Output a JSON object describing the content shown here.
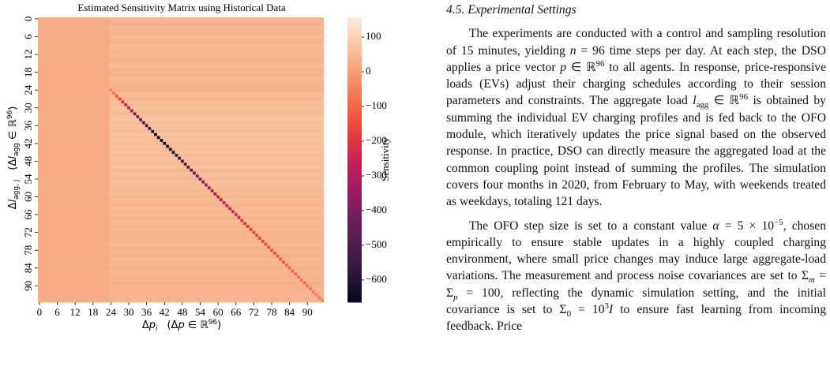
{
  "chart_data": {
    "type": "heatmap",
    "title": "Estimated Sensitivity Matrix using Historical Data",
    "xlabel": [
      "Δ",
      "p",
      "i",
      "(Δ",
      "p",
      " ∈ ℝ",
      "96",
      ")"
    ],
    "ylabel": [
      "Δ",
      "l",
      "agg, j",
      "(Δ",
      "l",
      "agg",
      " ∈ ℝ",
      "96",
      ")"
    ],
    "colorbar_label": "Sensitivity",
    "xlim": [
      0,
      96
    ],
    "ylim": [
      0,
      96
    ],
    "xticks": [
      0,
      6,
      12,
      18,
      24,
      30,
      36,
      42,
      48,
      54,
      60,
      66,
      72,
      78,
      84,
      90
    ],
    "yticks": [
      0,
      6,
      12,
      18,
      24,
      30,
      36,
      42,
      48,
      54,
      60,
      66,
      72,
      78,
      84,
      90
    ],
    "clim": [
      -664,
      157
    ],
    "cticks": [
      100,
      0,
      {
        "value": -100,
        "label": "−100"
      },
      {
        "value": -200,
        "label": "−200"
      },
      {
        "value": -300,
        "label": "−300"
      },
      {
        "value": -400,
        "label": "−400"
      },
      {
        "value": -500,
        "label": "−500"
      },
      {
        "value": -600,
        "label": "−600"
      }
    ],
    "colormap": "rocket",
    "left_values": [
      32,
      32,
      32,
      32,
      32,
      32,
      32,
      32,
      32,
      32,
      32,
      32,
      32,
      32,
      32,
      32,
      32,
      32,
      32,
      32,
      32,
      32,
      32,
      32,
      32,
      32,
      32,
      32,
      32,
      32,
      32,
      32,
      32,
      32,
      32,
      32,
      32,
      32,
      32,
      32,
      32,
      32,
      32,
      32,
      32,
      32,
      32,
      32,
      32,
      32,
      32,
      32,
      32,
      32,
      32,
      32,
      32,
      32,
      32,
      32,
      32,
      32,
      32,
      32,
      32,
      32,
      32,
      32,
      32,
      32,
      32,
      32,
      32,
      32,
      32,
      32,
      32,
      32,
      32,
      32,
      32,
      32,
      32,
      32,
      32,
      32,
      32,
      32,
      32,
      32,
      32,
      32,
      32,
      32,
      32,
      32
    ],
    "right_values": [
      45,
      50,
      38,
      55,
      48,
      42,
      58,
      50,
      40,
      60,
      52,
      44,
      56,
      48,
      38,
      54,
      60,
      46,
      50,
      42,
      58,
      52,
      44,
      48,
      40,
      55,
      62,
      50,
      66,
      58,
      72,
      64,
      55,
      70,
      78,
      60,
      74,
      68,
      58,
      76,
      66,
      72,
      60,
      70,
      64,
      74,
      56,
      68,
      62,
      58,
      70,
      52,
      64,
      60,
      48,
      66,
      56,
      62,
      50,
      60,
      46,
      58,
      52,
      44,
      56,
      48,
      60,
      42,
      54,
      50,
      46,
      58,
      40,
      52,
      48,
      44,
      56,
      42,
      50,
      46,
      38,
      54,
      44,
      48,
      40,
      52,
      46,
      42,
      50,
      38,
      48,
      44,
      40,
      50,
      42,
      46
    ],
    "diagonal_values": [
      null,
      null,
      null,
      null,
      null,
      null,
      null,
      null,
      null,
      null,
      null,
      null,
      null,
      null,
      null,
      null,
      null,
      null,
      null,
      null,
      null,
      null,
      null,
      null,
      -60,
      -90,
      -130,
      -170,
      -210,
      -250,
      -290,
      -330,
      -370,
      -410,
      -450,
      -490,
      -520,
      -550,
      -580,
      -610,
      -630,
      -640,
      -640,
      -630,
      -615,
      -595,
      -570,
      -545,
      -520,
      -495,
      -470,
      -445,
      -420,
      -400,
      -380,
      -360,
      -345,
      -330,
      -315,
      -300,
      -290,
      -280,
      -270,
      -260,
      -250,
      -240,
      -230,
      -220,
      -210,
      -200,
      -190,
      -180,
      -170,
      -165,
      -160,
      -155,
      -150,
      -145,
      -140,
      -135,
      -130,
      -125,
      -120,
      -115,
      -110,
      -105,
      -100,
      -95,
      -90,
      -85,
      -80,
      -75,
      -70,
      -65,
      -60,
      -55
    ]
  },
  "section": {
    "heading": "4.5. Experimental Settings",
    "paragraphs": [
      [
        "The experiments are conducted with a control and sampling resolution of 15 minutes, yielding ",
        "n",
        " = 96 time steps per day. At each step, the DSO applies a price vector ",
        "p",
        " ∈ ℝ",
        "96",
        " to all agents. In response, price-responsive loads (EVs) adjust their charging schedules according to their session parameters and constraints. The aggregate load ",
        "l",
        "agg",
        " ∈ ℝ",
        "96",
        " is obtained by summing the individual EV charging profiles and is fed back to the OFO module, which iteratively updates the price signal based on the observed response. In practice, DSO can directly measure the aggregated load at the common coupling point instead of summing the profiles. The simulation covers four months in 2020, from February to May, with weekends treated as weekdays, totaling 121 days."
      ],
      [
        "The OFO step size is set to a constant value ",
        "α",
        " = 5 × 10",
        "−5",
        ", chosen empirically to ensure stable updates in a highly coupled charging environment, where small price changes may induce large aggregate-load variations. The measurement and process noise covariances are set to Σ",
        "m",
        " = Σ",
        "p",
        " = 100, reflecting the dynamic simulation setting, and the initial covariance is set to Σ",
        "0",
        " = 10",
        "3",
        "I",
        " to ensure fast learning from incoming feedback. Price"
      ]
    ]
  }
}
